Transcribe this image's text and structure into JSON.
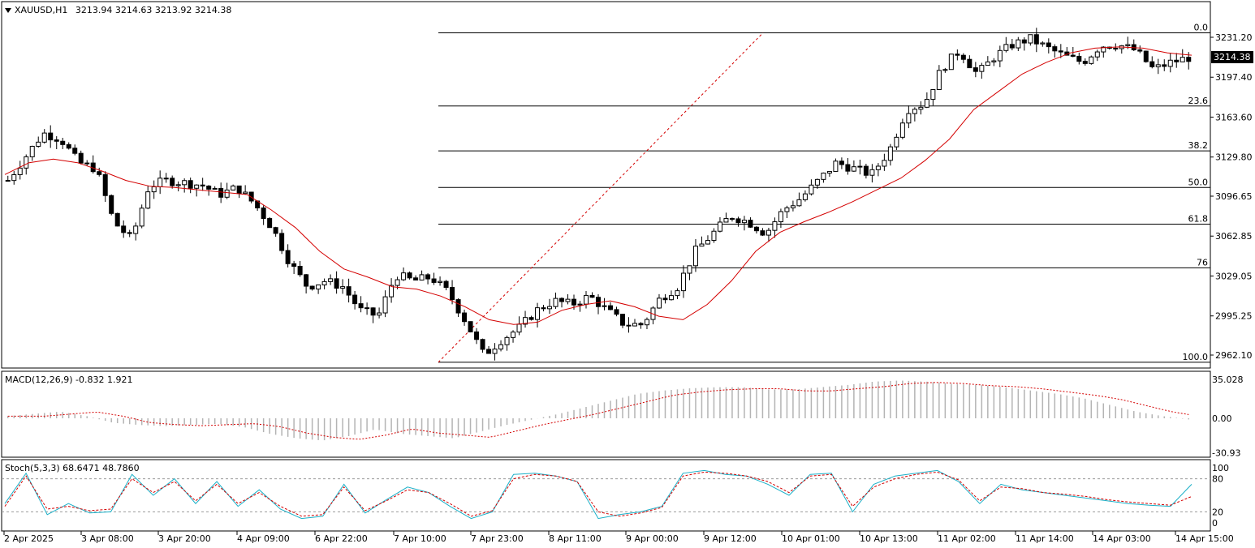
{
  "window": {
    "symbol_header": "XAUUSD,H1",
    "ohlc": "3213.94 3214.63 3213.92 3214.38",
    "current_price": "3214.38"
  },
  "macd": {
    "header": "MACD(12,26,9) -0.832 1.921",
    "scale": [
      "35.028",
      "0.00",
      "-30.93"
    ]
  },
  "stoch": {
    "header": "Stoch(5,3,3) 68.6471 48.7860",
    "scale": [
      "100",
      "80",
      "20",
      "0"
    ]
  },
  "colors": {
    "ma": "#d40000",
    "fib": "#000000",
    "fib_trend": "#d40000",
    "macd_hist": "#b4b4b4",
    "stoch_main": "#1ab0c8",
    "stoch_signal": "#d40000"
  },
  "chart_data": {
    "type": "candlestick",
    "price_axis": [
      "3231.20",
      "3197.40",
      "3163.60",
      "3129.80",
      "3096.65",
      "3062.85",
      "3029.05",
      "2995.25",
      "2962.10"
    ],
    "price_range": [
      2956,
      3240
    ],
    "time_axis": [
      "2 Apr 2025",
      "3 Apr 08:00",
      "3 Apr 20:00",
      "4 Apr 09:00",
      "6 Apr 22:00",
      "7 Apr 10:00",
      "7 Apr 23:00",
      "8 Apr 11:00",
      "9 Apr 00:00",
      "9 Apr 12:00",
      "10 Apr 01:00",
      "10 Apr 13:00",
      "11 Apr 02:00",
      "11 Apr 14:00",
      "14 Apr 03:00",
      "14 Apr 15:00"
    ],
    "fibonacci": [
      {
        "label": "0.0",
        "price": 3235
      },
      {
        "label": "23.6",
        "price": 3173
      },
      {
        "label": "38.2",
        "price": 3135
      },
      {
        "label": "50.0",
        "price": 3104
      },
      {
        "label": "61.8",
        "price": 3073
      },
      {
        "label": "76",
        "price": 3036
      },
      {
        "label": "100.0",
        "price": 2956
      }
    ],
    "price_path": [
      3110,
      3130,
      3150,
      3145,
      3125,
      3120,
      3075,
      3060,
      3105,
      3110,
      3108,
      3106,
      3098,
      3104,
      3090,
      3070,
      3040,
      3020,
      3025,
      3020,
      3000,
      2995,
      3030,
      3025,
      3028,
      3015,
      2990,
      2962,
      2975,
      2985,
      3000,
      3008,
      3005,
      3012,
      3000,
      2988,
      2988,
      3010,
      3020,
      3050,
      3065,
      3080,
      3075,
      3065,
      3085,
      3095,
      3110,
      3125,
      3120,
      3115,
      3135,
      3170,
      3175,
      3205,
      3220,
      3200,
      3215,
      3225,
      3230,
      3222,
      3215,
      3210,
      3224,
      3225,
      3220,
      3204,
      3210,
      3214
    ],
    "ma_path": [
      3115,
      3125,
      3128,
      3125,
      3118,
      3110,
      3105,
      3104,
      3102,
      3100,
      3098,
      3085,
      3070,
      3050,
      3035,
      3028,
      3020,
      3018,
      3012,
      3003,
      2992,
      2988,
      2990,
      3000,
      3005,
      3008,
      3003,
      2995,
      2992,
      3005,
      3025,
      3050,
      3066,
      3075,
      3083,
      3092,
      3102,
      3112,
      3127,
      3145,
      3170,
      3185,
      3200,
      3210,
      3218,
      3222,
      3223,
      3222,
      3218,
      3216
    ],
    "macd_path": [
      2,
      4,
      6,
      2,
      -4,
      -6,
      -7,
      -6,
      -5,
      -8,
      -14,
      -18,
      -20,
      -16,
      -10,
      -14,
      -16,
      -18,
      -12,
      -6,
      -1,
      4,
      10,
      16,
      22,
      25,
      27,
      28,
      28,
      26,
      26,
      28,
      30,
      33,
      34,
      33,
      31,
      30,
      28,
      25,
      22,
      18,
      12,
      6,
      2,
      -1
    ],
    "stoch_main": [
      35,
      90,
      15,
      35,
      18,
      20,
      88,
      50,
      80,
      35,
      75,
      30,
      60,
      25,
      8,
      12,
      70,
      18,
      42,
      65,
      55,
      30,
      8,
      20,
      88,
      90,
      85,
      75,
      8,
      15,
      20,
      30,
      90,
      95,
      88,
      85,
      70,
      50,
      88,
      90,
      20,
      70,
      85,
      90,
      95,
      75,
      35,
      70,
      60,
      55,
      50,
      45,
      40,
      35,
      32,
      30,
      70
    ],
    "stoch_signal": [
      30,
      85,
      25,
      30,
      22,
      25,
      80,
      55,
      75,
      40,
      70,
      35,
      55,
      30,
      12,
      15,
      65,
      22,
      40,
      60,
      55,
      35,
      12,
      22,
      80,
      88,
      85,
      75,
      20,
      12,
      18,
      28,
      85,
      92,
      90,
      85,
      75,
      55,
      85,
      88,
      30,
      65,
      80,
      88,
      92,
      78,
      40,
      65,
      62,
      55,
      52,
      48,
      42,
      38,
      35,
      32,
      48
    ]
  }
}
